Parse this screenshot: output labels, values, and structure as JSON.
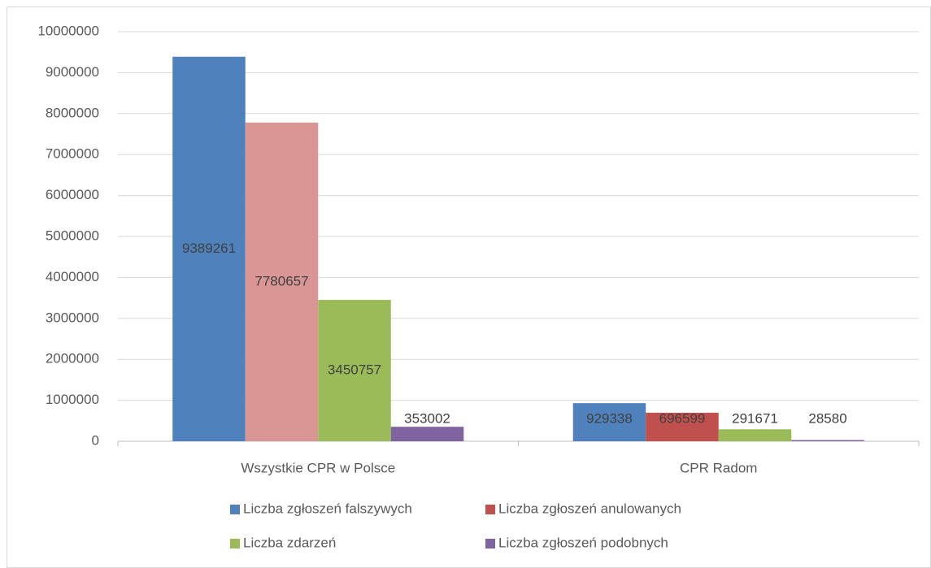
{
  "chart_data": {
    "type": "bar",
    "categories": [
      "Wszystkie CPR w Polsce",
      "CPR Radom"
    ],
    "series": [
      {
        "name": "Liczba zgłoszeń falszywych",
        "color": "#4f81bd",
        "values": [
          9389261,
          929338
        ]
      },
      {
        "name": "Liczba zgłoszeń anulowanych",
        "color": "#c0504d",
        "point_colors": [
          "#d99694",
          "#c0504d"
        ],
        "values": [
          7780657,
          696599
        ]
      },
      {
        "name": "Liczba zdarzeń",
        "color": "#9bbb59",
        "values": [
          3450757,
          291671
        ]
      },
      {
        "name": "Liczba zgłoszeń podobnych",
        "color": "#8064a2",
        "values": [
          353002,
          28580
        ]
      }
    ],
    "ylim": [
      0,
      10000000
    ],
    "yticks": [
      0,
      1000000,
      2000000,
      3000000,
      4000000,
      5000000,
      6000000,
      7000000,
      8000000,
      9000000,
      10000000
    ],
    "grid": true,
    "legend": "bottom"
  }
}
